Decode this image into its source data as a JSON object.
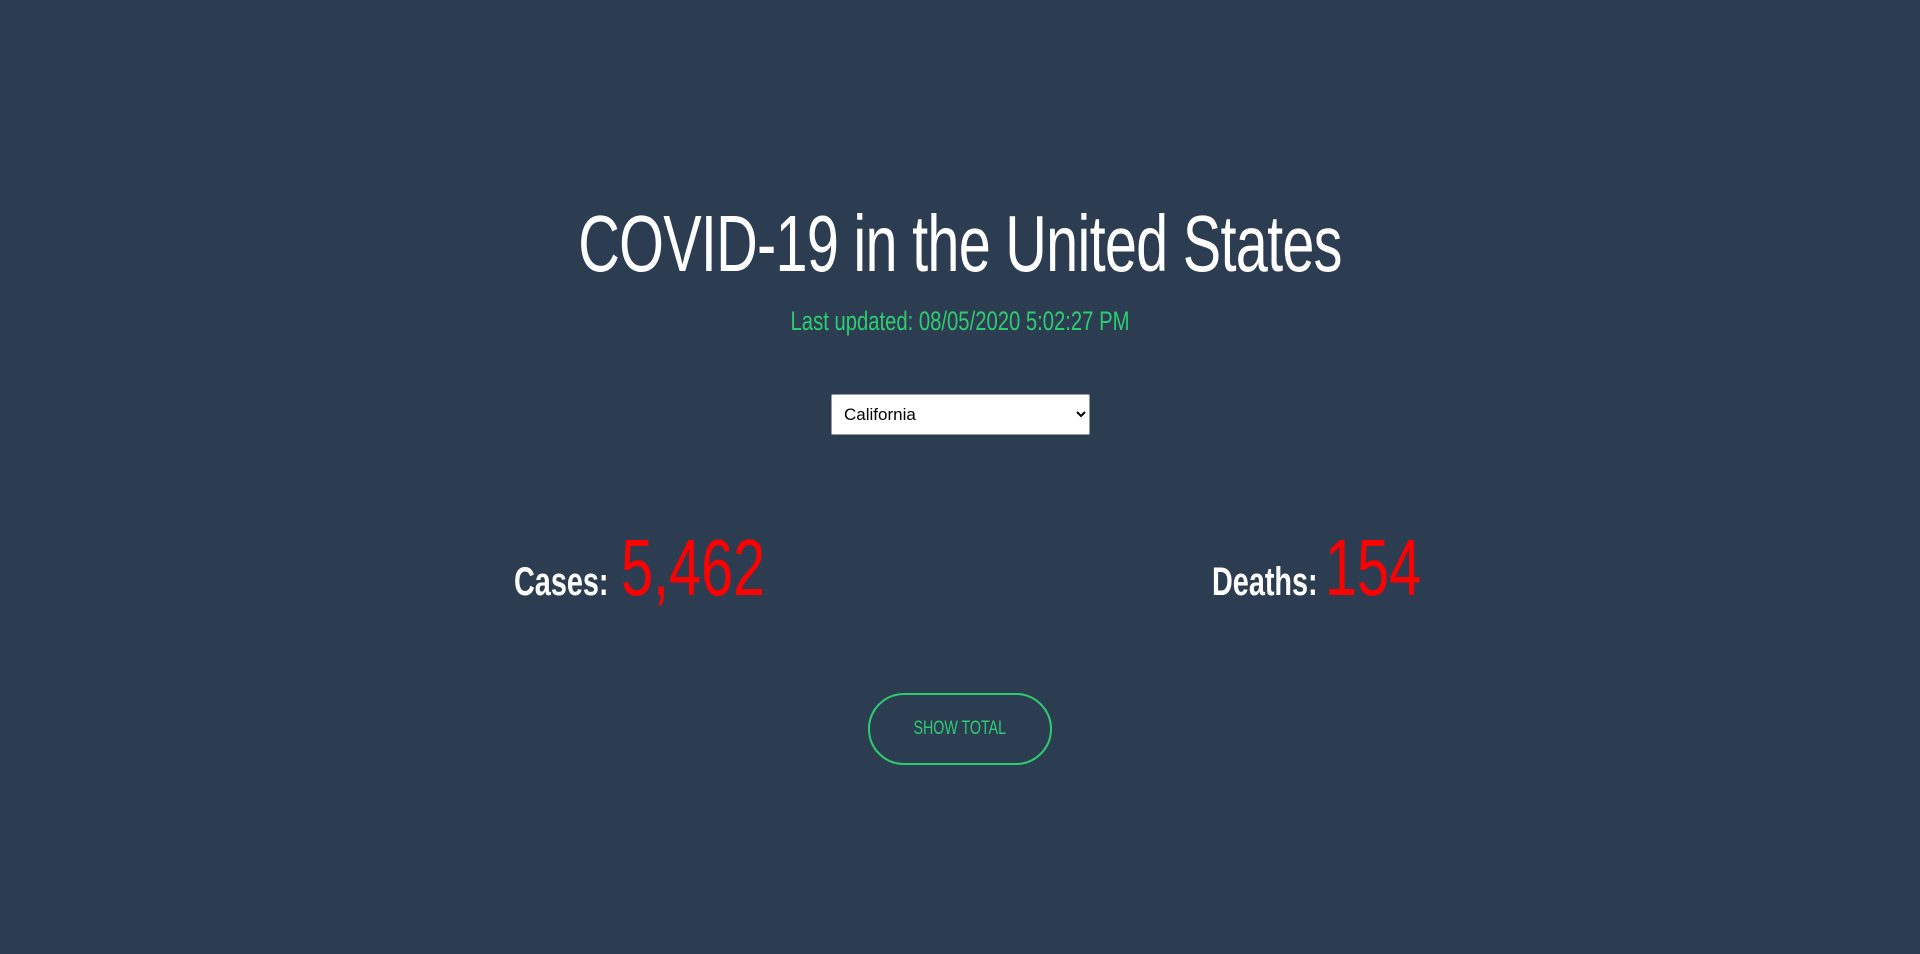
{
  "header": {
    "title": "COVID-19 in the United States",
    "last_updated": "Last updated: 08/05/2020 5:02:27 PM"
  },
  "state_select": {
    "selected": "California"
  },
  "stats": {
    "cases_label": "Cases:",
    "cases_value": "5,462",
    "deaths_label": "Deaths:",
    "deaths_value": "154"
  },
  "actions": {
    "show_total_label": "SHOW TOTAL"
  },
  "colors": {
    "background": "#2d3d51",
    "accent": "#2ecc71",
    "stat_value": "#ff0000",
    "text": "#ffffff"
  }
}
